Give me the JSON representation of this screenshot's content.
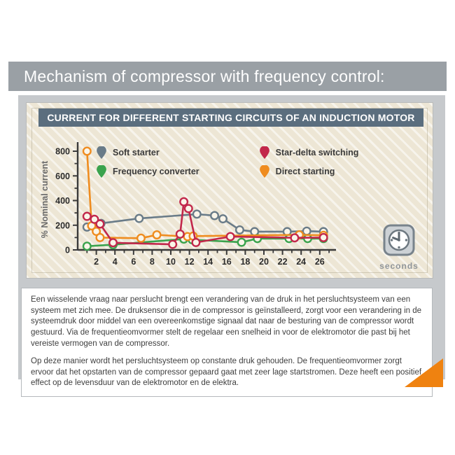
{
  "page": {
    "header_title": "Mechanism of compressor with frequency control:"
  },
  "chart_data": {
    "type": "line",
    "title": "CURRENT FOR DIFFERENT STARTING CIRCUITS OF AN INDUCTION MOTOR",
    "ylabel": "% Nominal current",
    "x_unit_label": "seconds",
    "x_range": [
      0,
      27
    ],
    "y_range": [
      0,
      850
    ],
    "x_ticks_labeled": [
      2,
      4,
      6,
      8,
      10,
      12,
      14,
      16,
      18,
      20,
      22,
      24,
      26
    ],
    "x_ticks_minor": [
      1,
      3,
      5,
      7,
      9,
      11,
      13,
      15,
      17,
      19,
      21,
      23,
      25,
      27
    ],
    "y_ticks_labeled": [
      0,
      200,
      400,
      600,
      800
    ],
    "y_ticks_minor": [
      100,
      300,
      500,
      700
    ],
    "grid": false,
    "legend_position": "inside-top-left, two columns",
    "marker_style": "open circle, cream fill",
    "series": [
      {
        "name": "Soft starter",
        "color": "#697b88",
        "points": [
          [
            1,
            185
          ],
          [
            2.5,
            215
          ],
          [
            6.6,
            255
          ],
          [
            12.8,
            290
          ],
          [
            14.7,
            278
          ],
          [
            15.6,
            252
          ],
          [
            17.4,
            162
          ],
          [
            19,
            148
          ],
          [
            22.5,
            148
          ],
          [
            24.6,
            152
          ],
          [
            26.4,
            148
          ]
        ]
      },
      {
        "name": "Frequency converter",
        "color": "#3aa34d",
        "points": [
          [
            1,
            30
          ],
          [
            3.8,
            42
          ],
          [
            11.4,
            88
          ],
          [
            12.3,
            82
          ],
          [
            17.6,
            62
          ],
          [
            19.3,
            92
          ],
          [
            22.7,
            92
          ],
          [
            24.7,
            92
          ],
          [
            26.4,
            92
          ]
        ]
      },
      {
        "name": "Direct starting",
        "color": "#ef8c1f",
        "points": [
          [
            1,
            800
          ],
          [
            1.5,
            195
          ],
          [
            2,
            150
          ],
          [
            2.4,
            100
          ],
          [
            6.8,
            95
          ],
          [
            8.5,
            122
          ],
          [
            11.8,
            108
          ],
          [
            12.4,
            112
          ],
          [
            23.8,
            122
          ],
          [
            26.4,
            118
          ]
        ]
      },
      {
        "name": "Star-delta switching",
        "color": "#c2274b",
        "points": [
          [
            1,
            272
          ],
          [
            1.8,
            248
          ],
          [
            2.4,
            210
          ],
          [
            3.8,
            58
          ],
          [
            10.2,
            45
          ],
          [
            11,
            128
          ],
          [
            11.4,
            390
          ],
          [
            11.9,
            335
          ],
          [
            12.7,
            60
          ],
          [
            16.4,
            108
          ],
          [
            23.3,
            98
          ],
          [
            26.4,
            100
          ]
        ]
      }
    ],
    "legend_columns": [
      [
        "Soft starter",
        "Frequency converter"
      ],
      [
        "Star-delta switching",
        "Direct starting"
      ]
    ]
  },
  "icons": {
    "clock": "clock-icon",
    "legend_pin": "pin-marker-icon"
  },
  "body_text": {
    "paragraph1": "Een wisselende vraag naar perslucht brengt een verandering van de druk in het persluchtsysteem van een systeem met zich mee. De druksensor die in de compressor is geïnstalleerd, zorgt voor een verandering in de systeemdruk door middel van een overeenkomstige signaal dat naar de besturing van de compressor wordt gestuurd. Via de frequentieomvormer stelt de regelaar een snelheid in voor de elektromotor die past bij het vereiste vermogen van de compressor.",
    "paragraph2": "Op deze manier wordt het persluchtsysteem op constante druk gehouden. De frequentieomvormer zorgt ervoor dat het opstarten van de compressor gepaard gaat met zeer lage startstromen. Deze heeft een positief effect op de levensduur van de elektromotor en de elektra."
  },
  "colors": {
    "header_band": "#9aa0a5",
    "content_bg": "#c6c9cc",
    "panel_bg": "#ede6d5",
    "chart_title_bar": "#5b6e7e",
    "axis": "#3a3a3a",
    "corner_triangle": "#ef8210",
    "seconds_label": "#8f959a"
  }
}
